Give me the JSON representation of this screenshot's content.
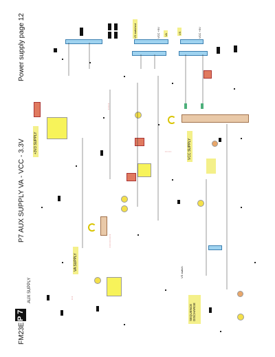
{
  "header": {
    "page_label": "Power supply page 12",
    "title": "P7  AUX SUPPLY  VA - VCC - 3.3V",
    "model": "FM23E",
    "badge": "P 7",
    "subtitle": "AUX SUPPLY"
  },
  "blocks": {
    "supply_3v3": "+3V3 SUPPLY",
    "vcc_supply": "VCC SUPPLY",
    "va_supply": "VA SUPPLY",
    "sequence_discharge": "SEQUENCE DISCHARGE",
    "vs_switch": "VS switch"
  },
  "net_labels": {
    "vs_switched": "VS switched",
    "vcc_5v": "VCC +5V",
    "vcc_plus5v": "VCC +5V",
    "va": "VA",
    "vs": "VS"
  },
  "colors": {
    "label_yellow": "#f4f08a",
    "connector_blue": "#9fd3f0",
    "component_red": "#e07a5f",
    "component_yellow": "#f7f35a",
    "heatsink_tan": "#e9c9a8"
  }
}
